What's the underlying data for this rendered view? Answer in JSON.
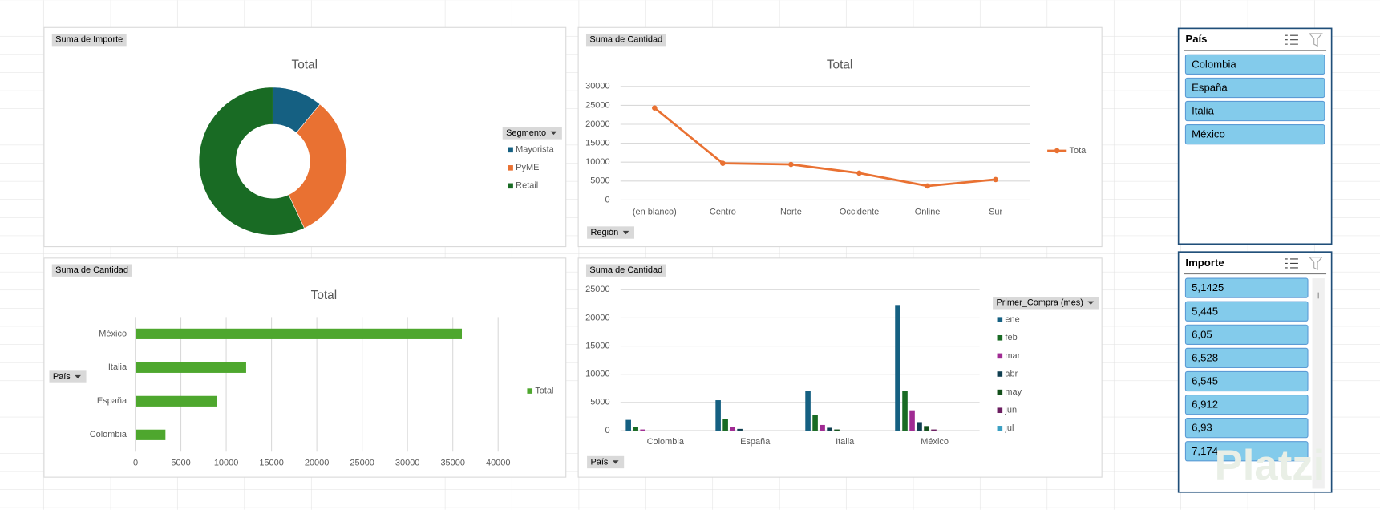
{
  "chart_data": [
    {
      "type": "donut",
      "value_field": "Suma de Importe",
      "title": "Total",
      "legend_title": "Segmento",
      "categories": [
        "Mayorista",
        "PyME",
        "Retail"
      ],
      "values": [
        11,
        32,
        57
      ],
      "colors": [
        "#156082",
        "#e97132",
        "#196b24"
      ]
    },
    {
      "type": "line",
      "value_field": "Suma de Cantidad",
      "title": "Total",
      "axis_field": "Región",
      "categories": [
        "(en blanco)",
        "Centro",
        "Norte",
        "Occidente",
        "Online",
        "Sur"
      ],
      "series": [
        {
          "name": "Total",
          "color": "#e97132",
          "values": [
            24300,
            9700,
            9400,
            7100,
            3700,
            5400
          ]
        }
      ],
      "ylim": [
        0,
        30000
      ],
      "yticks": [
        0,
        5000,
        10000,
        15000,
        20000,
        25000,
        30000
      ],
      "grid": true
    },
    {
      "type": "barh",
      "value_field": "Suma de Cantidad",
      "title": "Total",
      "axis_field": "País",
      "categories": [
        "Colombia",
        "España",
        "Italia",
        "México"
      ],
      "series": [
        {
          "name": "Total",
          "color": "#4ea72e",
          "values": [
            3300,
            9000,
            12200,
            36000
          ]
        }
      ],
      "xlim": [
        0,
        40000
      ],
      "xticks": [
        0,
        5000,
        10000,
        15000,
        20000,
        25000,
        30000,
        35000,
        40000
      ],
      "grid": true
    },
    {
      "type": "bar",
      "value_field": "Suma de Cantidad",
      "axis_field": "País",
      "legend_title": "Primer_Compra (mes)",
      "categories": [
        "Colombia",
        "España",
        "Italia",
        "México"
      ],
      "series": [
        {
          "name": "ene",
          "color": "#156082",
          "values": [
            1900,
            5400,
            7100,
            22300
          ]
        },
        {
          "name": "feb",
          "color": "#196b24",
          "values": [
            700,
            2100,
            2800,
            7100
          ]
        },
        {
          "name": "mar",
          "color": "#a02b93",
          "values": [
            200,
            600,
            1000,
            3600
          ]
        },
        {
          "name": "abr",
          "color": "#0f3e50",
          "values": [
            0,
            300,
            500,
            1500
          ]
        },
        {
          "name": "may",
          "color": "#124f1a",
          "values": [
            0,
            0,
            200,
            800
          ]
        },
        {
          "name": "jun",
          "color": "#6b1d60",
          "values": [
            0,
            0,
            0,
            200
          ]
        },
        {
          "name": "jul",
          "color": "#3a9fc2",
          "values": [
            0,
            0,
            0,
            0
          ]
        }
      ],
      "ylim": [
        0,
        25000
      ],
      "yticks": [
        0,
        5000,
        10000,
        15000,
        20000,
        25000
      ],
      "grid": true
    }
  ],
  "slicers": [
    {
      "title": "País",
      "items": [
        "Colombia",
        "España",
        "Italia",
        "México"
      ]
    },
    {
      "title": "Importe",
      "items": [
        "5,1425",
        "5,445",
        "6,05",
        "6,528",
        "6,545",
        "6,912",
        "6,93",
        "7,174"
      ]
    }
  ],
  "watermark": "Platzi"
}
